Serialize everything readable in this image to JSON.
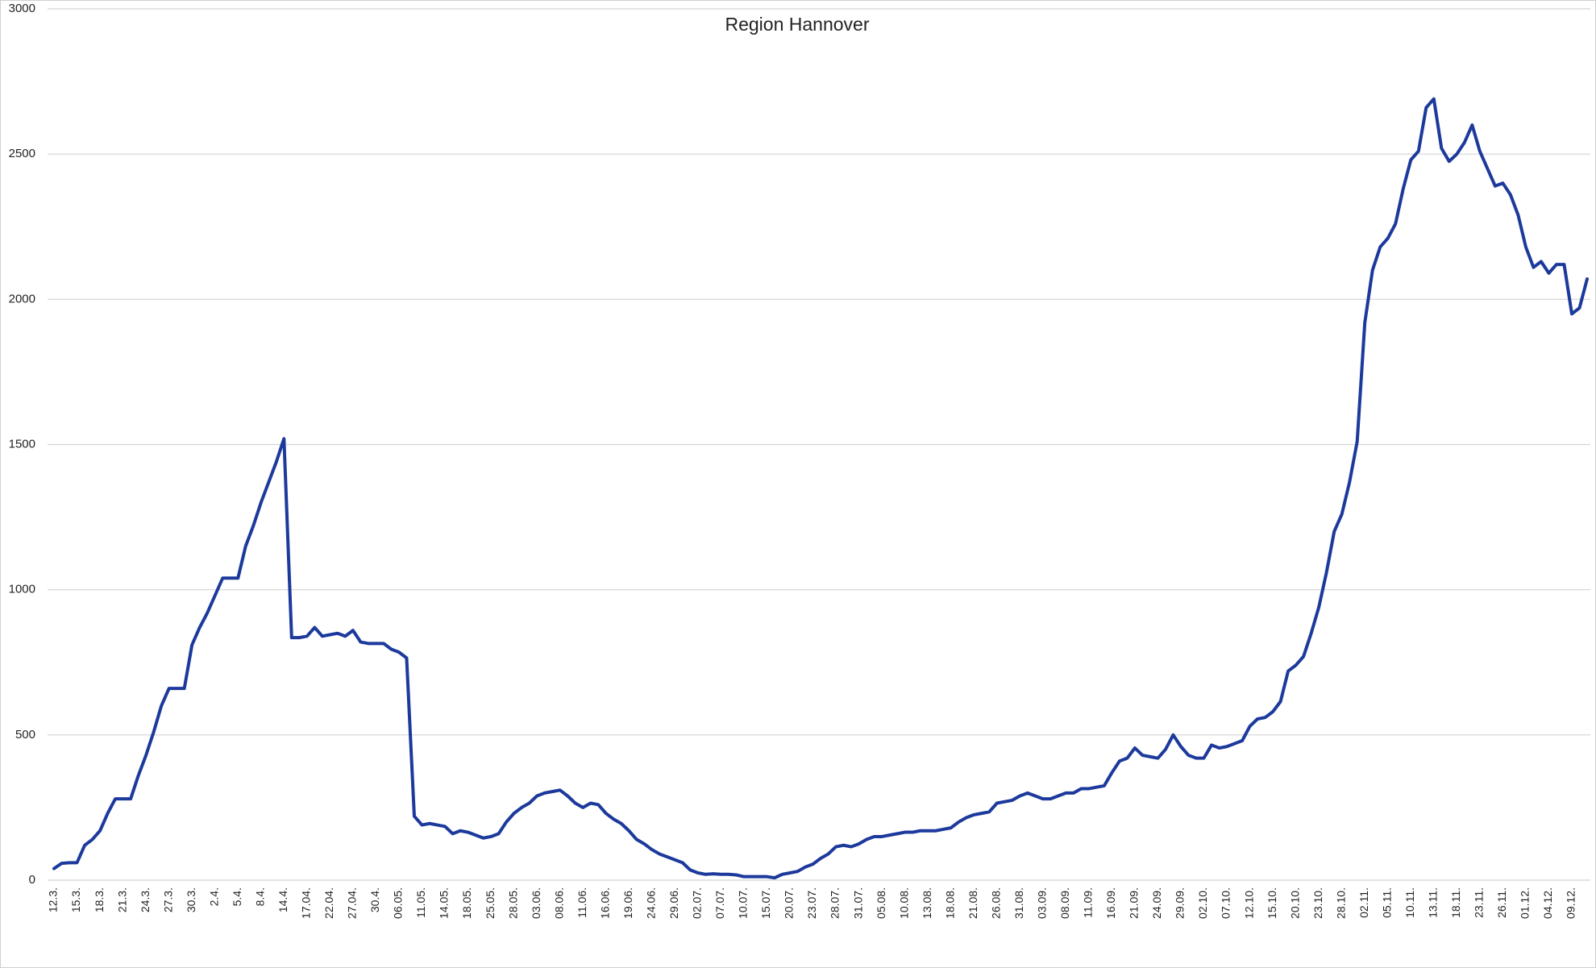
{
  "chart_data": {
    "type": "line",
    "title": "Region Hannover",
    "categories": [
      "12.3.",
      null,
      null,
      "15.3.",
      null,
      null,
      "18.3.",
      null,
      null,
      "21.3.",
      null,
      null,
      "24.3.",
      null,
      null,
      "27.3.",
      null,
      null,
      "30.3.",
      null,
      null,
      "2.4.",
      null,
      null,
      "5.4.",
      null,
      null,
      "8.4.",
      null,
      null,
      "14.4.",
      null,
      null,
      "17.04.",
      null,
      null,
      "22.04.",
      null,
      null,
      "27.04.",
      null,
      null,
      "30.4.",
      null,
      null,
      "06.05.",
      null,
      null,
      "11.05.",
      null,
      null,
      "14.05.",
      null,
      null,
      "18.05.",
      null,
      null,
      "25.05.",
      null,
      null,
      "28.05.",
      null,
      null,
      "03.06.",
      null,
      null,
      "08.06.",
      null,
      null,
      "11.06.",
      null,
      null,
      "16.06.",
      null,
      null,
      "19.06.",
      null,
      null,
      "24.06.",
      null,
      null,
      "29.06.",
      null,
      null,
      "02.07.",
      null,
      null,
      "07.07.",
      null,
      null,
      "10.07.",
      null,
      null,
      "15.07.",
      null,
      null,
      "20.07.",
      null,
      null,
      "23.07.",
      null,
      null,
      "28.07.",
      null,
      null,
      "31.07.",
      null,
      null,
      "05.08.",
      null,
      null,
      "10.08.",
      null,
      null,
      "13.08.",
      null,
      null,
      "18.08.",
      null,
      null,
      "21.08.",
      null,
      null,
      "26.08.",
      null,
      null,
      "31.08.",
      null,
      null,
      "03.09.",
      null,
      null,
      "08.09.",
      null,
      null,
      "11.09.",
      null,
      null,
      "16.09.",
      null,
      null,
      "21.09.",
      null,
      null,
      "24.09.",
      null,
      null,
      "29.09.",
      null,
      null,
      "02.10.",
      null,
      null,
      "07.10.",
      null,
      null,
      "12.10.",
      null,
      null,
      "15.10.",
      null,
      null,
      "20.10.",
      null,
      null,
      "23.10.",
      null,
      null,
      "28.10.",
      null,
      null,
      "02.11.",
      null,
      null,
      "05.11.",
      null,
      null,
      "10.11.",
      null,
      null,
      "13.11.",
      null,
      null,
      "18.11.",
      null,
      null,
      "23.11.",
      null,
      null,
      "26.11.",
      null,
      null,
      "01.12.",
      null,
      null,
      "04.12.",
      null,
      null,
      "09.12.",
      null,
      null
    ],
    "series": [
      {
        "color": "#1c399c",
        "values": [
          40,
          58,
          60,
          60,
          120,
          140,
          170,
          230,
          280,
          280,
          280,
          360,
          430,
          510,
          600,
          660,
          660,
          660,
          810,
          870,
          920,
          980,
          1040,
          1040,
          1040,
          1150,
          1220,
          1300,
          1370,
          1440,
          1520,
          835,
          835,
          840,
          870,
          840,
          845,
          850,
          840,
          860,
          820,
          815,
          815,
          815,
          795,
          785,
          765,
          220,
          190,
          195,
          190,
          185,
          160,
          170,
          165,
          155,
          145,
          150,
          160,
          200,
          230,
          250,
          265,
          290,
          300,
          305,
          310,
          290,
          265,
          250,
          265,
          260,
          230,
          210,
          195,
          170,
          140,
          125,
          105,
          90,
          80,
          70,
          60,
          35,
          25,
          20,
          22,
          20,
          20,
          18,
          12,
          12,
          12,
          12,
          8,
          20,
          25,
          30,
          45,
          55,
          75,
          90,
          115,
          120,
          115,
          125,
          140,
          150,
          150,
          155,
          160,
          165,
          165,
          170,
          170,
          170,
          175,
          180,
          200,
          215,
          225,
          230,
          235,
          265,
          270,
          275,
          290,
          300,
          290,
          280,
          280,
          290,
          300,
          300,
          315,
          315,
          320,
          325,
          370,
          410,
          420,
          455,
          430,
          425,
          420,
          450,
          500,
          460,
          430,
          420,
          420,
          465,
          455,
          460,
          470,
          480,
          530,
          555,
          560,
          580,
          615,
          720,
          740,
          770,
          850,
          940,
          1060,
          1200,
          1260,
          1370,
          1510,
          1920,
          2100,
          2180,
          2210,
          2260,
          2380,
          2480,
          2510,
          2660,
          2690,
          2520,
          2475,
          2500,
          2540,
          2600,
          2510,
          2450,
          2390,
          2400,
          2360,
          2290,
          2180,
          2110,
          2130,
          2090,
          2120,
          2120,
          1950,
          1970,
          2070
        ]
      }
    ],
    "ylim": [
      0,
      3000
    ],
    "yticks": [
      0,
      500,
      1000,
      1500,
      2000,
      2500,
      3000
    ],
    "grid": true
  }
}
